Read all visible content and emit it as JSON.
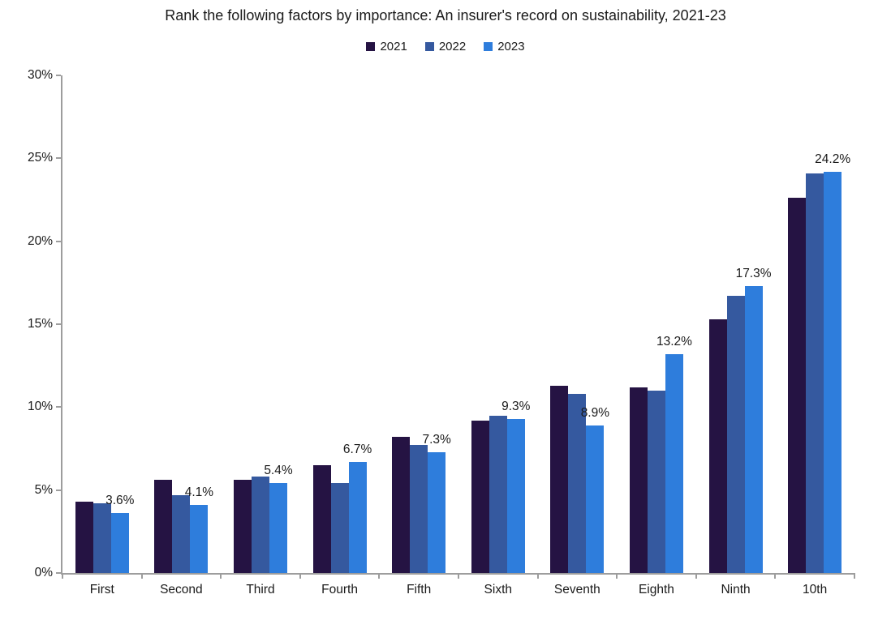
{
  "title": "Rank the following factors by importance: An insurer's record on sustainability, 2021-23",
  "colors": {
    "series_2021": "#251343",
    "series_2022": "#35599F",
    "series_2023": "#2E7DDC",
    "axis": "#9D9D9D",
    "text": "#1A1A1A",
    "background": "#FFFFFF"
  },
  "chart_data": {
    "type": "bar",
    "title": "Rank the following factors by importance: An insurer's record on sustainability, 2021-23",
    "categories": [
      "First",
      "Second",
      "Third",
      "Fourth",
      "Fifth",
      "Sixth",
      "Seventh",
      "Eighth",
      "Ninth",
      "10th"
    ],
    "series": [
      {
        "name": "2021",
        "color": "#251343",
        "values": [
          4.3,
          5.6,
          5.6,
          6.5,
          8.2,
          9.2,
          11.3,
          11.2,
          15.3,
          22.6
        ]
      },
      {
        "name": "2022",
        "color": "#35599F",
        "values": [
          4.2,
          4.7,
          5.8,
          5.4,
          7.7,
          9.5,
          10.8,
          11.0,
          16.7,
          24.1
        ]
      },
      {
        "name": "2023",
        "color": "#2E7DDC",
        "values": [
          3.6,
          4.1,
          5.4,
          6.7,
          7.3,
          9.3,
          8.9,
          13.2,
          17.3,
          24.2
        ],
        "data_labels": [
          "3.6%",
          "4.1%",
          "5.4%",
          "6.7%",
          "7.3%",
          "9.3%",
          "8.9%",
          "13.2%",
          "17.3%",
          "24.2%"
        ]
      }
    ],
    "xlabel": "",
    "ylabel": "",
    "ylim": [
      0,
      30
    ],
    "y_ticks": [
      "0%",
      "5%",
      "10%",
      "15%",
      "20%",
      "25%",
      "30%"
    ],
    "grid": false,
    "legend_position": "top",
    "data_label_series": "2023"
  }
}
